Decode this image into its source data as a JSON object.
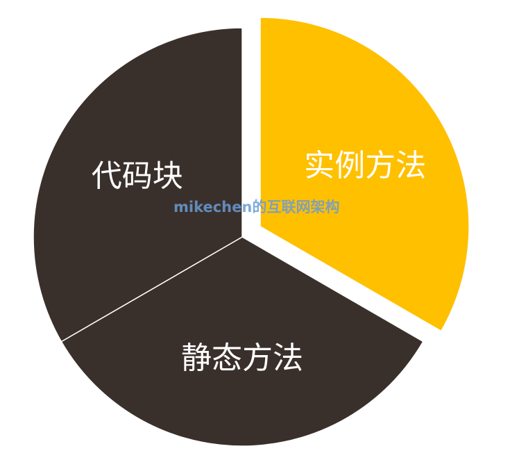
{
  "chart_data": {
    "type": "pie",
    "title": "",
    "slices": [
      {
        "label": "实例方法",
        "value": 33.33,
        "color": "#FFC000",
        "exploded": true
      },
      {
        "label": "静态方法",
        "value": 33.33,
        "color": "#3A302B",
        "exploded": false
      },
      {
        "label": "代码块",
        "value": 33.34,
        "color": "#3A302B",
        "exploded": false
      }
    ],
    "start": "12 o'clock",
    "direction": "clockwise",
    "legend": "none"
  },
  "watermark": {
    "text": "mikechen的互联网架构"
  }
}
